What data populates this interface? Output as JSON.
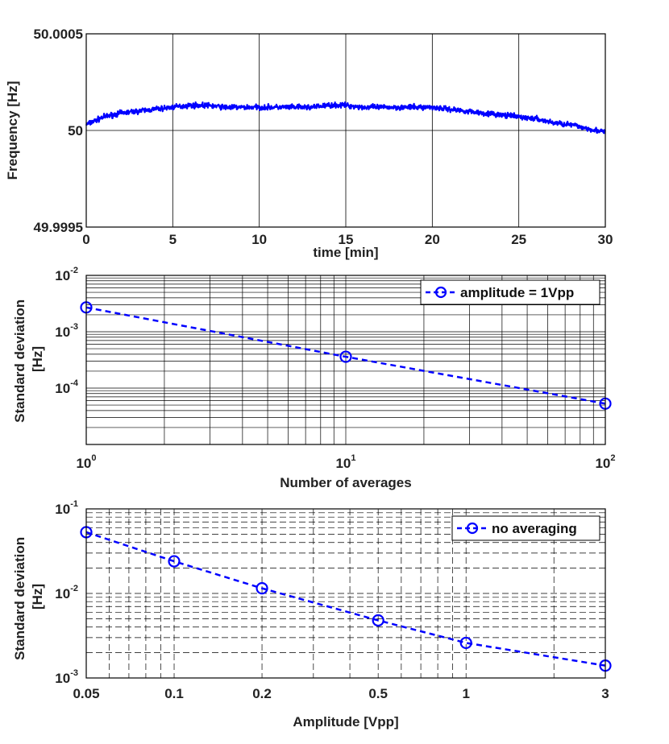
{
  "chart_data": [
    {
      "type": "line",
      "title": "",
      "xlabel": "time [min]",
      "ylabel": "Frequency [Hz]",
      "xlim": [
        0,
        30
      ],
      "ylim": [
        49.9995,
        50.0005
      ],
      "xticks": [
        "0",
        "5",
        "10",
        "15",
        "20",
        "25",
        "30"
      ],
      "yticks": [
        "49.9995",
        "50",
        "50.0005"
      ],
      "grid": true,
      "series": [
        {
          "name": "frequency",
          "color": "#0000ff",
          "noise_amplitude": 2e-05,
          "x": [
            0,
            1,
            2,
            3,
            4,
            5,
            6,
            7,
            8,
            9,
            10,
            11,
            12,
            13,
            14,
            15,
            16,
            17,
            18,
            19,
            20,
            21,
            22,
            23,
            24,
            25,
            26,
            27,
            28,
            29,
            30
          ],
          "values": [
            50.00003,
            50.00007,
            50.00009,
            50.0001,
            50.00011,
            50.00012,
            50.00013,
            50.00013,
            50.00012,
            50.00012,
            50.00012,
            50.00012,
            50.00012,
            50.00012,
            50.00013,
            50.00013,
            50.00012,
            50.00012,
            50.00012,
            50.00012,
            50.00012,
            50.00011,
            50.0001,
            50.00009,
            50.00008,
            50.00007,
            50.00006,
            50.00004,
            50.00003,
            50.00001,
            49.99999
          ]
        }
      ]
    },
    {
      "type": "line",
      "xscale": "log",
      "yscale": "log",
      "xlabel": "Number of averages",
      "ylabel_lines": [
        "Standard deviation",
        "[Hz]"
      ],
      "xlim": [
        1,
        100
      ],
      "ylim": [
        1e-05,
        0.01
      ],
      "xticks": [
        {
          "base": "10",
          "exp": "0"
        },
        {
          "base": "10",
          "exp": "1"
        },
        {
          "base": "10",
          "exp": "2"
        }
      ],
      "yticks": [
        {
          "base": "10",
          "exp": "-4"
        },
        {
          "base": "10",
          "exp": "-3"
        },
        {
          "base": "10",
          "exp": "-2"
        }
      ],
      "grid": true,
      "legend_position": "top-right",
      "series": [
        {
          "name": "amplitude = 1Vpp",
          "color": "#0000ff",
          "style": "dashed-circle",
          "x": [
            1,
            10,
            100
          ],
          "values": [
            0.0027,
            0.00036,
            5.3e-05
          ]
        }
      ]
    },
    {
      "type": "line",
      "xscale": "log",
      "yscale": "log",
      "xlabel": "Amplitude [Vpp]",
      "ylabel_lines": [
        "Standard deviation",
        "[Hz]"
      ],
      "xlim": [
        0.05,
        3
      ],
      "ylim": [
        0.001,
        0.1
      ],
      "xticks": [
        "0.05",
        "0.1",
        "0.2",
        "0.5",
        "1",
        "3"
      ],
      "yticks": [
        {
          "base": "10",
          "exp": "-3"
        },
        {
          "base": "10",
          "exp": "-2"
        },
        {
          "base": "10",
          "exp": "-1"
        }
      ],
      "grid": true,
      "legend_position": "top-right",
      "series": [
        {
          "name": "no averaging",
          "color": "#0000ff",
          "style": "dashed-circle",
          "x": [
            0.05,
            0.1,
            0.2,
            0.5,
            1,
            3
          ],
          "values": [
            0.053,
            0.024,
            0.0115,
            0.0048,
            0.0026,
            0.0014
          ]
        }
      ]
    }
  ]
}
